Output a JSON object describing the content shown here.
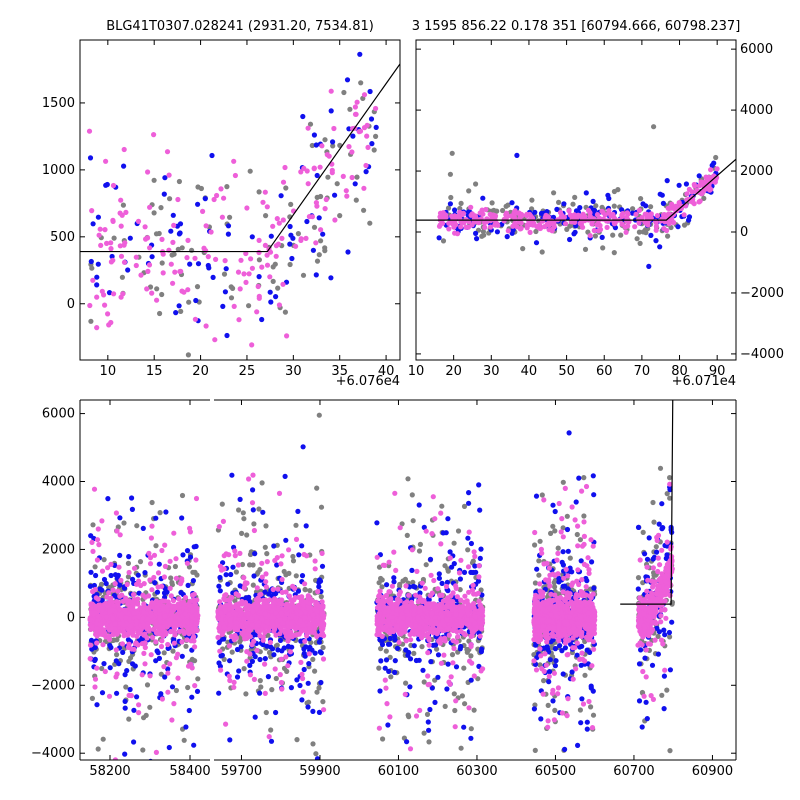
{
  "titles": {
    "left": "BLG41T0307.028241 (2931.20, 7534.81)",
    "right": "3 1595 856.22 0.178 351 [60794.666, 60798.237]"
  },
  "colors": {
    "grey": "#808080",
    "blue": "#1010ee",
    "pink": "#ee5fd9",
    "model": "#000000"
  },
  "chart_data": [
    {
      "id": "top-left",
      "type": "scatter",
      "title": "BLG41T0307.028241 (2931.20, 7534.81)",
      "x_offset_label": "+6.076e4",
      "xlim": [
        7,
        41.5
      ],
      "ylim": [
        -420,
        1970
      ],
      "xticks": [
        10,
        15,
        20,
        25,
        30,
        35,
        40
      ],
      "yticks": [
        0,
        500,
        1000,
        1500
      ],
      "model": {
        "baseline": 390,
        "break_x": 27.2,
        "slope": 98
      },
      "series": [
        {
          "color": "grey",
          "x_range": [
            8,
            39
          ],
          "count": 100
        },
        {
          "color": "blue",
          "x_range": [
            8,
            39
          ],
          "count": 90
        },
        {
          "color": "pink",
          "x_range": [
            8,
            39
          ],
          "count": 190
        }
      ]
    },
    {
      "id": "top-right",
      "type": "scatter",
      "title": "3 1595 856.22 0.178 351 [60794.666, 60798.237]",
      "x_offset_label": "+6.071e4",
      "xlim": [
        10,
        95
      ],
      "ylim": [
        -4200,
        6300
      ],
      "xticks": [
        10,
        20,
        30,
        40,
        50,
        60,
        70,
        80,
        90
      ],
      "yticks": [
        -4000,
        -2000,
        0,
        2000,
        4000,
        6000
      ],
      "model": {
        "baseline": 390,
        "break_x": 76.5,
        "slope": 108
      },
      "series": [
        {
          "color": "grey",
          "x_range": [
            16,
            90
          ],
          "count": 170
        },
        {
          "color": "blue",
          "x_range": [
            16,
            90
          ],
          "count": 170
        },
        {
          "color": "pink",
          "x_range": [
            16,
            90
          ],
          "count": 330
        }
      ]
    },
    {
      "id": "bottom",
      "type": "scatter",
      "xticks": [
        58200,
        58400,
        59700,
        59900,
        60100,
        60300,
        60500,
        60700,
        60900
      ],
      "yticks": [
        -4000,
        -2000,
        0,
        2000,
        4000,
        6000
      ],
      "ylim": [
        -4200,
        6400
      ],
      "seasons": [
        {
          "xlim": [
            58125,
            58450
          ],
          "data_range": [
            58150,
            58420
          ]
        },
        {
          "xlim": [
            59630,
            60960
          ],
          "data_ranges": [
            [
              59640,
              59910
            ],
            [
              60045,
              60315
            ],
            [
              60445,
              60600
            ],
            [
              60710,
              60798
            ]
          ]
        }
      ],
      "model": {
        "baseline": 390,
        "flat_from": 60665,
        "break_x": 60794.7,
        "slope": 1450
      },
      "series": [
        {
          "color": "grey",
          "count_per_season": 260
        },
        {
          "color": "blue",
          "count_per_season": 260
        },
        {
          "color": "pink",
          "count_per_season": 900
        }
      ]
    }
  ]
}
